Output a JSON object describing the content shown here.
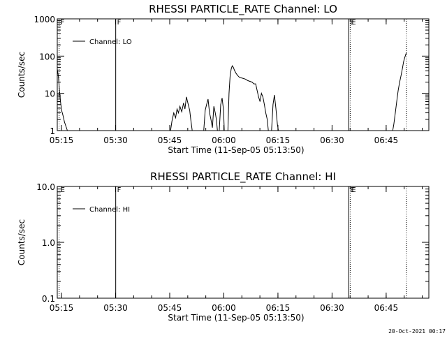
{
  "footer_timestamp": "20-Oct-2021 00:17",
  "chart_data": [
    {
      "type": "line",
      "title": "RHESSI PARTICLE_RATE Channel: LO",
      "xlabel": "Start Time (11-Sep-05 05:13:50)",
      "ylabel": "Counts/sec",
      "yscale": "log",
      "ylim": [
        1,
        1000
      ],
      "xlim_minutes": [
        0,
        103
      ],
      "xticks": [
        "05:15",
        "05:30",
        "05:45",
        "06:00",
        "06:15",
        "06:30",
        "06:45"
      ],
      "xtick_minutes": [
        1.17,
        16.17,
        31.17,
        46.17,
        61.17,
        76.17,
        91.17
      ],
      "yticks": [
        "1",
        "10",
        "100",
        "1000"
      ],
      "ytick_values": [
        1,
        10,
        100,
        1000
      ],
      "legend": {
        "label": "Channel: LO",
        "position": "top-left"
      },
      "markers": [
        {
          "label": "F",
          "minute": 0.5,
          "style": "dotted"
        },
        {
          "label": "F",
          "minute": 16.2,
          "style": "solid"
        },
        {
          "label": "E",
          "minute": 80.8,
          "style": "solid"
        },
        {
          "label": "E",
          "minute": 81.2,
          "style": "dotted"
        },
        {
          "label": "",
          "minute": 96.8,
          "style": "dotted"
        }
      ],
      "series": [
        {
          "segments": [
            [
              [
                0.0,
                45
              ],
              [
                0.3,
                30
              ],
              [
                0.6,
                12
              ],
              [
                0.9,
                6
              ],
              [
                1.2,
                3.5
              ],
              [
                1.6,
                2.5
              ],
              [
                2.0,
                1.7
              ],
              [
                2.4,
                1.3
              ],
              [
                2.8,
                1.0
              ]
            ],
            [
              [
                31.4,
                1.0
              ],
              [
                31.8,
                1.8
              ],
              [
                32.3,
                3.0
              ],
              [
                32.8,
                2.2
              ],
              [
                33.2,
                3.8
              ],
              [
                33.6,
                3.0
              ],
              [
                34.0,
                4.5
              ],
              [
                34.5,
                3.2
              ],
              [
                35.0,
                5.5
              ],
              [
                35.4,
                3.8
              ],
              [
                35.8,
                8.0
              ],
              [
                36.2,
                5.5
              ],
              [
                36.7,
                3.5
              ],
              [
                37.0,
                2.0
              ],
              [
                37.4,
                1.0
              ]
            ],
            [
              [
                40.6,
                1.0
              ],
              [
                41.0,
                3.5
              ],
              [
                41.4,
                5.0
              ],
              [
                41.8,
                7.0
              ],
              [
                42.2,
                3.0
              ],
              [
                42.6,
                2.0
              ],
              [
                43.0,
                1.2
              ],
              [
                43.4,
                4.5
              ],
              [
                43.8,
                3.0
              ],
              [
                44.1,
                2.0
              ],
              [
                44.4,
                1.0
              ]
            ],
            [
              [
                44.9,
                1.0
              ],
              [
                45.3,
                5.0
              ],
              [
                45.7,
                7.5
              ],
              [
                46.1,
                3.5
              ],
              [
                46.3,
                1.0
              ]
            ],
            [
              [
                47.3,
                1.0
              ],
              [
                47.6,
                10
              ],
              [
                47.9,
                28
              ],
              [
                48.2,
                45
              ],
              [
                48.5,
                55
              ],
              [
                48.8,
                50
              ],
              [
                49.1,
                42
              ],
              [
                49.5,
                35
              ],
              [
                50.0,
                30
              ],
              [
                50.5,
                27
              ],
              [
                51.0,
                26
              ],
              [
                51.6,
                25
              ],
              [
                52.2,
                24
              ],
              [
                52.8,
                22
              ],
              [
                53.4,
                21
              ],
              [
                54.0,
                20
              ],
              [
                54.5,
                18
              ],
              [
                55.0,
                18
              ],
              [
                55.4,
                12
              ],
              [
                55.8,
                8.0
              ],
              [
                56.2,
                6.0
              ],
              [
                56.6,
                10
              ],
              [
                57.0,
                8.0
              ],
              [
                57.4,
                5.0
              ],
              [
                57.8,
                3.0
              ],
              [
                58.2,
                2.0
              ],
              [
                58.5,
                1.0
              ]
            ],
            [
              [
                59.4,
                1.0
              ],
              [
                59.8,
                5.0
              ],
              [
                60.2,
                9.0
              ],
              [
                60.6,
                4.0
              ],
              [
                61.0,
                1.5
              ],
              [
                61.3,
                1.0
              ]
            ],
            [
              [
                93.0,
                1.0
              ],
              [
                93.3,
                1.5
              ],
              [
                93.7,
                3.0
              ],
              [
                94.1,
                6.0
              ],
              [
                94.5,
                12
              ],
              [
                94.9,
                20
              ],
              [
                95.3,
                30
              ],
              [
                95.7,
                48
              ],
              [
                96.0,
                70
              ],
              [
                96.3,
                90
              ],
              [
                96.6,
                110
              ],
              [
                96.8,
                125
              ]
            ]
          ]
        }
      ]
    },
    {
      "type": "line",
      "title": "RHESSI PARTICLE_RATE Channel: HI",
      "xlabel": "Start Time (11-Sep-05 05:13:50)",
      "ylabel": "Counts/sec",
      "yscale": "log",
      "ylim": [
        0.1,
        10
      ],
      "xlim_minutes": [
        0,
        103
      ],
      "xticks": [
        "05:15",
        "05:30",
        "05:45",
        "06:00",
        "06:15",
        "06:30",
        "06:45"
      ],
      "xtick_minutes": [
        1.17,
        16.17,
        31.17,
        46.17,
        61.17,
        76.17,
        91.17
      ],
      "yticks": [
        "0.1",
        "1.0",
        "10.0"
      ],
      "ytick_values": [
        0.1,
        1,
        10
      ],
      "legend": {
        "label": "Channel: HI",
        "position": "top-left"
      },
      "markers": [
        {
          "label": "E",
          "minute": 0.5,
          "style": "dotted"
        },
        {
          "label": "F",
          "minute": 16.2,
          "style": "solid"
        },
        {
          "label": "E",
          "minute": 80.8,
          "style": "solid"
        },
        {
          "label": "E",
          "minute": 81.2,
          "style": "dotted"
        },
        {
          "label": "",
          "minute": 96.8,
          "style": "dotted"
        }
      ],
      "series": [
        {
          "segments": []
        }
      ]
    }
  ]
}
